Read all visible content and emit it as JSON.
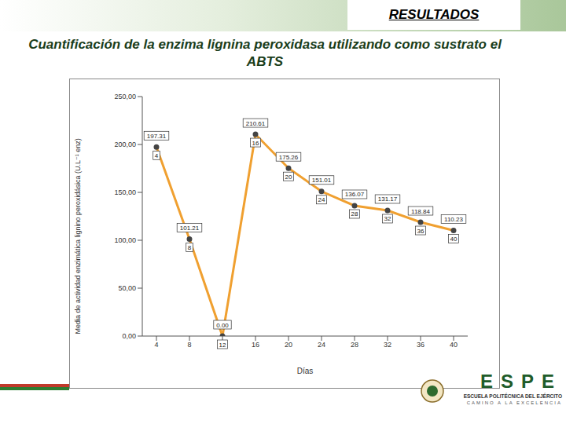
{
  "slide": {
    "header": "RESULTADOS",
    "title": "Cuantificación de la enzima lignina peroxidasa utilizando como sustrato el ABTS",
    "logo": {
      "name": "ESPE",
      "institution": "ESCUELA POLITÉCNICA DEL EJÉRCITO",
      "motto": "CAMINO A LA EXCELENCIA"
    }
  },
  "chart_data": {
    "type": "line",
    "x_label": "Días",
    "y_label": "Media de actividad enzimática lignino peroxidásica (U.L⁻¹ enz)",
    "categories": [
      "4",
      "8",
      "12",
      "16",
      "20",
      "24",
      "28",
      "32",
      "36",
      "40"
    ],
    "values": [
      197.31,
      101.21,
      0,
      210.61,
      175.26,
      151.01,
      136.07,
      131.17,
      118.84,
      110.23
    ],
    "value_labels": [
      "197.31",
      "101.21",
      "0.00",
      "210.61",
      "175.26",
      "151.01",
      "136.07",
      "131.17",
      "118.84",
      "110.23"
    ],
    "point_labels": [
      "4",
      "8",
      "12",
      "16",
      "20",
      "24",
      "28",
      "32",
      "36",
      "40"
    ],
    "data_labels": true,
    "color": "#f0a030",
    "marker": "circle",
    "grid": false,
    "ylim": [
      0,
      250
    ],
    "yticks": [
      {
        "value": 0,
        "label": "0,00"
      },
      {
        "value": 50,
        "label": "50,00"
      },
      {
        "value": 100,
        "label": "100,00"
      },
      {
        "value": 150,
        "label": "150,00"
      },
      {
        "value": 200,
        "label": "200,00"
      },
      {
        "value": 250,
        "label": "250,00"
      }
    ]
  }
}
